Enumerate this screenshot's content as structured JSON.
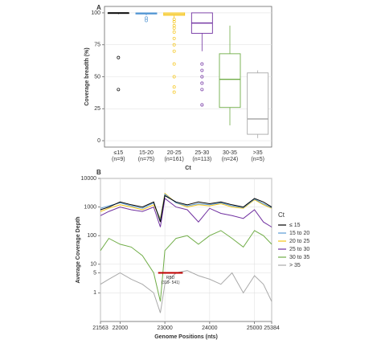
{
  "chart_data": [
    {
      "type": "box",
      "panel": "A",
      "xlabel": "Ct",
      "ylabel": "Coverage breadth (%)",
      "categories": [
        "≤15",
        "15-20",
        "20-25",
        "25-30",
        "30-35",
        ">35"
      ],
      "n_labels": [
        "(n=9)",
        "(n=75)",
        "(n=161)",
        "(n=113)",
        "(n=24)",
        "(n=5)"
      ],
      "colors": [
        "#000000",
        "#5b9bd5",
        "#f5c518",
        "#7030a0",
        "#70ad47",
        "#aaaaaa"
      ],
      "boxes": [
        {
          "min": 99,
          "q1": 99.5,
          "median": 100,
          "q3": 100,
          "max": 100,
          "outliers": [
            65,
            40
          ]
        },
        {
          "min": 98,
          "q1": 99,
          "median": 99.5,
          "q3": 100,
          "max": 100,
          "outliers": [
            96,
            94
          ]
        },
        {
          "min": 96,
          "q1": 98,
          "median": 99,
          "q3": 100,
          "max": 100,
          "outliers": [
            95,
            93,
            90,
            88,
            85,
            80,
            75,
            70,
            60,
            50,
            42,
            38
          ]
        },
        {
          "min": 70,
          "q1": 84,
          "median": 92,
          "q3": 100,
          "max": 100,
          "outliers": [
            60,
            55,
            50,
            45,
            40,
            28
          ]
        },
        {
          "min": 12,
          "q1": 26,
          "median": 48,
          "q3": 68,
          "max": 90,
          "outliers": []
        },
        {
          "min": 2,
          "q1": 5,
          "median": 17,
          "q3": 53,
          "max": 55,
          "outliers": []
        }
      ],
      "ylim": [
        -5,
        105
      ],
      "yticks": [
        0,
        25,
        50,
        75,
        100
      ],
      "grid": true
    },
    {
      "type": "line",
      "panel": "B",
      "xlabel": "Genome Positions (nts)",
      "ylabel": "Average Coverage Depth",
      "legend_title": "Ct",
      "log_y": true,
      "grid": true,
      "x": [
        21563,
        21750,
        22000,
        22250,
        22500,
        22750,
        22900,
        23000,
        23250,
        23500,
        23750,
        24000,
        24250,
        24500,
        24750,
        25000,
        25200,
        25384
      ],
      "series": [
        {
          "name": "≤ 15",
          "color": "#000000",
          "values": [
            800,
            1000,
            1500,
            1200,
            1000,
            1500,
            300,
            2500,
            1500,
            1200,
            1500,
            1300,
            1500,
            1200,
            1000,
            2000,
            1500,
            1000
          ]
        },
        {
          "name": "15 to 20",
          "color": "#5b9bd5",
          "values": [
            900,
            1100,
            1400,
            1100,
            900,
            1400,
            350,
            2800,
            1400,
            1100,
            1300,
            1200,
            1400,
            1100,
            950,
            1900,
            1300,
            950
          ]
        },
        {
          "name": "20 to 25",
          "color": "#f5c518",
          "values": [
            700,
            900,
            1200,
            1000,
            800,
            1200,
            400,
            3000,
            1400,
            1000,
            1200,
            1100,
            1300,
            1000,
            900,
            1800,
            1200,
            900
          ]
        },
        {
          "name": "25 to 30",
          "color": "#7030a0",
          "values": [
            500,
            700,
            1000,
            800,
            700,
            1000,
            200,
            2000,
            1000,
            800,
            300,
            900,
            600,
            500,
            400,
            800,
            300,
            200
          ]
        },
        {
          "name": "30 to 35",
          "color": "#70ad47",
          "values": [
            30,
            80,
            50,
            40,
            20,
            5,
            0.5,
            30,
            80,
            100,
            50,
            100,
            150,
            80,
            40,
            150,
            100,
            50
          ]
        },
        {
          "name": "> 35",
          "color": "#aaaaaa",
          "values": [
            2,
            3,
            5,
            3,
            2,
            1,
            0.2,
            2,
            5,
            6,
            4,
            3,
            2,
            5,
            1,
            4,
            2,
            0.5
          ]
        }
      ],
      "annotation": {
        "text": "RBD",
        "subtext": "(319- 541)",
        "x_start": 22850,
        "x_end": 23400,
        "y": 5,
        "color": "#c00000"
      },
      "xlim": [
        21563,
        25384
      ],
      "xticks": [
        21563,
        22000,
        23000,
        24000,
        25000,
        25384
      ],
      "ylim": [
        0.1,
        10000
      ],
      "yticks": [
        1,
        5,
        10,
        100,
        1000,
        10000
      ]
    }
  ]
}
